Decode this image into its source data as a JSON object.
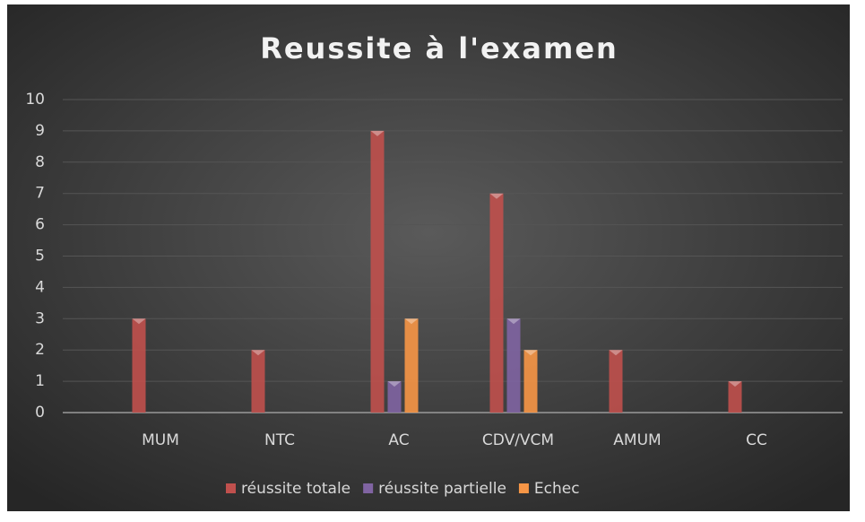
{
  "chart_data": {
    "type": "bar",
    "title": "Reussite à l'examen",
    "categories": [
      "MUM",
      "NTC",
      "AC",
      "CDV/VCM",
      "AMUM",
      "CC"
    ],
    "series": [
      {
        "name": "réussite totale",
        "color": "#c0504d",
        "values": [
          3,
          2,
          9,
          7,
          2,
          1
        ]
      },
      {
        "name": "réussite partielle",
        "color": "#8064a2",
        "values": [
          0,
          0,
          1,
          3,
          0,
          0
        ]
      },
      {
        "name": "Echec",
        "color": "#f79646",
        "values": [
          0,
          0,
          3,
          2,
          0,
          0
        ]
      }
    ],
    "ylim": [
      0,
      10
    ],
    "yticks": [
      0,
      1,
      2,
      3,
      4,
      5,
      6,
      7,
      8,
      9,
      10
    ],
    "grid": true,
    "legend": "bottom"
  }
}
